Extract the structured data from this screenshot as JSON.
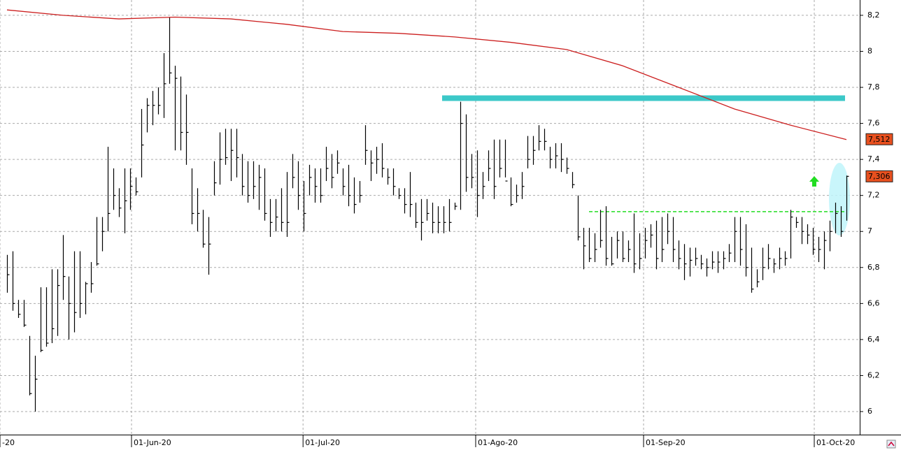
{
  "chart_data": {
    "type": "ohlc",
    "ylim": [
      5.872,
      8.285
    ],
    "yticks": [
      {
        "value": 8.2,
        "label": "8,2"
      },
      8,
      {
        "value": 7.8,
        "label": "7,8"
      },
      {
        "value": 7.6,
        "label": "7,6"
      },
      {
        "value": 7.4,
        "label": "7,4"
      },
      {
        "value": 7.2,
        "label": "7,2"
      },
      7,
      {
        "value": 6.8,
        "label": "6,8"
      },
      {
        "value": 6.6,
        "label": "6,6"
      },
      {
        "value": 6.4,
        "label": "6,4"
      },
      {
        "value": 6.2,
        "label": "6,2"
      },
      6
    ],
    "xlim": [
      -1.25,
      152.25
    ],
    "xticks": [
      {
        "value": -1.25,
        "label": "-20"
      },
      {
        "value": 22.25,
        "label": "01-Jun-20"
      },
      {
        "value": 52.9,
        "label": "01-Jul-20"
      },
      {
        "value": 83.75,
        "label": "01-Ago-20"
      },
      {
        "value": 113.75,
        "label": "01-Sep-20"
      },
      {
        "value": 144.25,
        "label": "01-Oct-20"
      }
    ],
    "grid": true,
    "series": [
      {
        "color": "#000000",
        "high": [
          6.87,
          6.89,
          6.62,
          6.62,
          6.42,
          6.31,
          6.69,
          6.69,
          6.79,
          6.79,
          6.98,
          6.75,
          6.89,
          6.89,
          6.72,
          6.83,
          7.08,
          7.08,
          7.47,
          7.35,
          7.24,
          7.35,
          7.35,
          7.3,
          7.68,
          7.74,
          7.78,
          7.8,
          7.99,
          8.19,
          7.92,
          7.86,
          7.76,
          7.35,
          7.24,
          7.12,
          7.08,
          7.39,
          7.55,
          7.57,
          7.57,
          7.57,
          7.43,
          7.39,
          7.39,
          7.37,
          7.35,
          7.18,
          7.18,
          7.24,
          7.33,
          7.43,
          7.39,
          7.28,
          7.37,
          7.35,
          7.35,
          7.47,
          7.43,
          7.45,
          7.35,
          7.37,
          7.3,
          7.28,
          7.59,
          7.45,
          7.47,
          7.49,
          7.35,
          7.35,
          7.24,
          7.24,
          7.33,
          7.16,
          7.18,
          7.18,
          7.16,
          7.14,
          7.14,
          7.18,
          7.16,
          7.72,
          7.65,
          7.43,
          7.45,
          7.33,
          7.45,
          7.51,
          7.51,
          7.51,
          7.3,
          7.26,
          7.33,
          7.53,
          7.53,
          7.59,
          7.57,
          7.47,
          7.49,
          7.49,
          7.41,
          7.33,
          7.2,
          7.02,
          7.02,
          6.99,
          7.12,
          7.14,
          6.97,
          7.0,
          7.0,
          6.95,
          7.1,
          6.99,
          7.02,
          7.04,
          7.06,
          7.08,
          7.1,
          7.08,
          6.95,
          6.93,
          6.91,
          6.91,
          6.87,
          6.85,
          6.89,
          6.89,
          6.89,
          6.93,
          7.08,
          7.08,
          7.04,
          6.91,
          6.79,
          6.91,
          6.93,
          6.85,
          6.91,
          6.89,
          7.12,
          7.08,
          7.08,
          7.04,
          7.02,
          6.97,
          7.0,
          7.06,
          7.16,
          7.14,
          7.31
        ],
        "low": [
          6.66,
          6.56,
          6.52,
          6.47,
          6.09,
          6.0,
          6.33,
          6.36,
          6.38,
          6.42,
          6.62,
          6.4,
          6.44,
          6.52,
          6.54,
          6.66,
          6.81,
          6.89,
          7.0,
          7.12,
          7.08,
          6.99,
          7.12,
          7.2,
          7.3,
          7.55,
          7.59,
          7.65,
          7.63,
          7.82,
          7.45,
          7.45,
          7.37,
          7.04,
          7.0,
          6.91,
          6.76,
          7.2,
          7.26,
          7.37,
          7.28,
          7.3,
          7.2,
          7.16,
          7.18,
          7.12,
          7.06,
          6.97,
          7.0,
          7.0,
          6.97,
          7.24,
          7.12,
          7.0,
          7.2,
          7.16,
          7.16,
          7.28,
          7.24,
          7.32,
          7.2,
          7.14,
          7.1,
          7.16,
          7.37,
          7.28,
          7.32,
          7.3,
          7.26,
          7.2,
          7.18,
          7.1,
          7.08,
          7.02,
          6.95,
          7.06,
          6.99,
          6.99,
          6.99,
          7.0,
          7.12,
          7.12,
          7.22,
          7.24,
          7.08,
          7.18,
          7.28,
          7.18,
          7.3,
          7.3,
          7.14,
          7.16,
          7.18,
          7.35,
          7.37,
          7.45,
          7.45,
          7.35,
          7.35,
          7.33,
          7.32,
          7.24,
          6.95,
          6.79,
          6.83,
          6.83,
          6.91,
          6.81,
          6.81,
          6.85,
          6.83,
          6.83,
          6.77,
          6.79,
          6.85,
          6.91,
          6.79,
          6.83,
          6.93,
          6.83,
          6.79,
          6.73,
          6.75,
          6.81,
          6.79,
          6.75,
          6.79,
          6.77,
          6.79,
          6.83,
          6.83,
          6.81,
          6.75,
          6.66,
          6.69,
          6.73,
          6.79,
          6.77,
          6.79,
          6.81,
          6.85,
          7.02,
          6.93,
          6.93,
          6.87,
          6.83,
          6.79,
          6.89,
          6.99,
          6.97,
          7.06
        ],
        "close": [
          6.76,
          6.6,
          6.54,
          6.48,
          6.1,
          6.18,
          6.34,
          6.38,
          6.46,
          6.7,
          6.75,
          6.6,
          6.55,
          6.6,
          6.71,
          6.71,
          6.82,
          7.0,
          7.1,
          7.2,
          7.13,
          7.17,
          7.25,
          7.22,
          7.48,
          7.7,
          7.7,
          7.7,
          7.82,
          7.88,
          7.85,
          7.55,
          7.55,
          7.1,
          7.1,
          6.93,
          6.93,
          7.27,
          7.4,
          7.41,
          7.45,
          7.41,
          7.25,
          7.2,
          7.25,
          7.3,
          7.1,
          7.05,
          7.08,
          7.05,
          7.05,
          7.3,
          7.2,
          7.1,
          7.3,
          7.25,
          7.2,
          7.35,
          7.3,
          7.38,
          7.25,
          7.2,
          7.15,
          7.2,
          7.45,
          7.38,
          7.4,
          7.35,
          7.3,
          7.25,
          7.2,
          7.15,
          7.15,
          7.05,
          7.05,
          7.1,
          7.05,
          7.05,
          7.05,
          7.05,
          7.14,
          7.6,
          7.3,
          7.3,
          7.2,
          7.25,
          7.35,
          7.25,
          7.35,
          7.28,
          7.15,
          7.2,
          7.25,
          7.4,
          7.45,
          7.5,
          7.5,
          7.4,
          7.42,
          7.4,
          7.35,
          7.26,
          6.97,
          6.92,
          6.85,
          6.9,
          6.95,
          6.85,
          6.82,
          6.95,
          6.85,
          6.9,
          6.82,
          6.85,
          6.95,
          6.98,
          6.85,
          6.9,
          7.0,
          6.9,
          6.85,
          6.82,
          6.84,
          6.85,
          6.82,
          6.8,
          6.83,
          6.83,
          6.85,
          6.88,
          7.0,
          6.9,
          6.8,
          6.68,
          6.72,
          6.8,
          6.85,
          6.82,
          6.85,
          6.85,
          7.08,
          7.05,
          7.0,
          6.98,
          6.9,
          6.9,
          6.95,
          7.0,
          7.1,
          7.0,
          7.306
        ]
      },
      {
        "type": "line",
        "color": "#cc1f1f",
        "x": [
          0,
          10,
          20,
          30,
          40,
          50,
          60,
          70,
          80,
          90,
          100,
          110,
          120,
          130,
          140,
          150
        ],
        "values": [
          8.23,
          8.2,
          8.18,
          8.19,
          8.18,
          8.15,
          8.11,
          8.1,
          8.08,
          8.05,
          8.01,
          7.92,
          7.8,
          7.68,
          7.59,
          7.51
        ]
      }
    ],
    "levels": [
      {
        "y": 7.74,
        "x": [
          77.75,
          149.75
        ],
        "color": "#3cc8c8",
        "style": "solid"
      },
      {
        "y": 7.11,
        "x": [
          104,
          150
        ],
        "color": "#22dd22",
        "style": "dashed"
      }
    ],
    "price_labels": [
      {
        "value": 7.512,
        "label": "7,512",
        "color": "#e8501f"
      },
      {
        "value": 7.306,
        "label": "7,306",
        "color": "#e8501f"
      }
    ]
  }
}
